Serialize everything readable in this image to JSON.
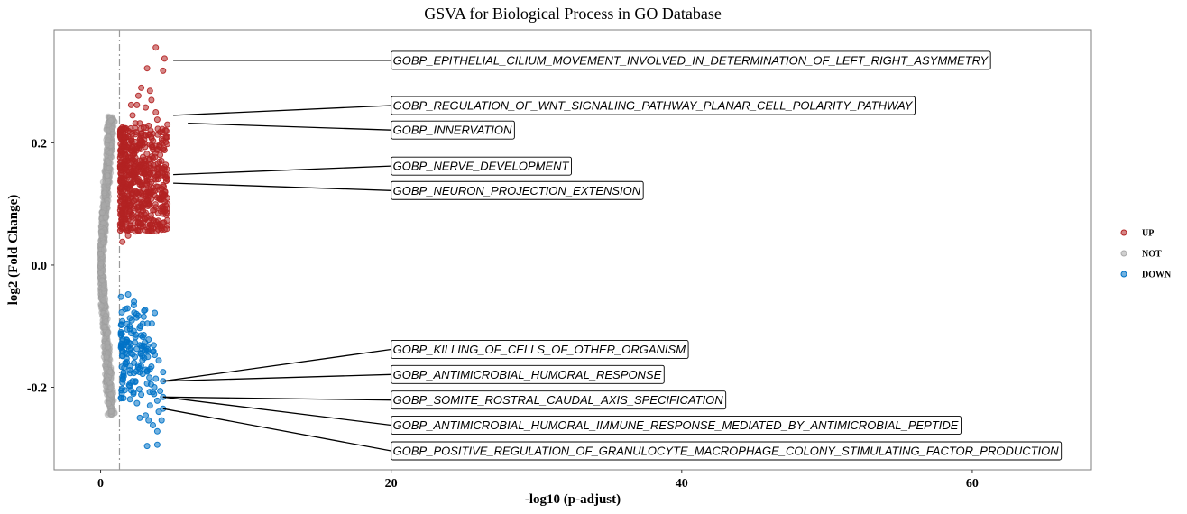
{
  "chart_data": {
    "type": "scatter",
    "title": "GSVA for Biological Process in GO Database",
    "xlabel": "-log10 (p-adjust)",
    "ylabel": "log2 (Fold Change)",
    "xlim": [
      -3.2,
      68.2
    ],
    "ylim": [
      -0.335,
      0.385
    ],
    "xticks": [
      0,
      20,
      40,
      60
    ],
    "yticks": [
      -0.2,
      0.0,
      0.2
    ],
    "xtick_labels": [
      "0",
      "20",
      "40",
      "60"
    ],
    "ytick_labels": [
      "-0.2",
      "0.0",
      "0.2"
    ],
    "threshold_x": 1.3,
    "grid": false,
    "legend_position": "right",
    "series": [
      {
        "name": "UP",
        "color": "#B22222"
      },
      {
        "name": "NOT",
        "color": "#A9A9A9"
      },
      {
        "name": "DOWN",
        "color": "#0072C6"
      }
    ],
    "highlighted_points": [
      {
        "label": "GOBP_EPITHELIAL_CILIUM_MOVEMENT_INVOLVED_IN_DETERMINATION_OF_LEFT_RIGHT_ASYMMETRY",
        "x": 5.0,
        "y": 0.335,
        "group": "UP",
        "label_y": 0.335
      },
      {
        "label": "GOBP_REGULATION_OF_WNT_SIGNALING_PATHWAY_PLANAR_CELL_POLARITY_PATHWAY",
        "x": 5.0,
        "y": 0.245,
        "group": "UP",
        "label_y": 0.261
      },
      {
        "label": "GOBP_INNERVATION",
        "x": 6.0,
        "y": 0.232,
        "group": "UP",
        "label_y": 0.221
      },
      {
        "label": "GOBP_NERVE_DEVELOPMENT",
        "x": 5.0,
        "y": 0.148,
        "group": "UP",
        "label_y": 0.162
      },
      {
        "label": "GOBP_NEURON_PROJECTION_EXTENSION",
        "x": 5.0,
        "y": 0.134,
        "group": "UP",
        "label_y": 0.122
      },
      {
        "label": "GOBP_KILLING_OF_CELLS_OF_OTHER_ORGANISM",
        "x": 4.3,
        "y": -0.19,
        "group": "DOWN",
        "label_y": -0.138
      },
      {
        "label": "GOBP_ANTIMICROBIAL_HUMORAL_RESPONSE",
        "x": 4.3,
        "y": -0.19,
        "group": "DOWN",
        "label_y": -0.179
      },
      {
        "label": "GOBP_SOMITE_ROSTRAL_CAUDAL_AXIS_SPECIFICATION",
        "x": 4.3,
        "y": -0.216,
        "group": "DOWN",
        "label_y": -0.221
      },
      {
        "label": "GOBP_ANTIMICROBIAL_HUMORAL_IMMUNE_RESPONSE_MEDIATED_BY_ANTIMICROBIAL_PEPTIDE",
        "x": 4.3,
        "y": -0.216,
        "group": "DOWN",
        "label_y": -0.262
      },
      {
        "label": "GOBP_POSITIVE_REGULATION_OF_GRANULOCYTE_MACROPHAGE_COLONY_STIMULATING_FACTOR_PRODUCTION",
        "x": 4.3,
        "y": -0.235,
        "group": "DOWN",
        "label_y": -0.304
      }
    ],
    "points": {
      "UP": [
        [
          3.8,
          0.356
        ],
        [
          4.4,
          0.338
        ],
        [
          3.2,
          0.322
        ],
        [
          4.3,
          0.318
        ],
        [
          2.8,
          0.29
        ],
        [
          3.4,
          0.285
        ],
        [
          2.6,
          0.277
        ],
        [
          3.5,
          0.27
        ],
        [
          2.5,
          0.262
        ],
        [
          3.8,
          0.25
        ],
        [
          2.2,
          0.245
        ],
        [
          4.6,
          0.23
        ],
        [
          3.9,
          0.238
        ],
        [
          3.3,
          0.228
        ],
        [
          4.5,
          0.21
        ],
        [
          4.2,
          0.2
        ],
        [
          1.8,
          0.188
        ],
        [
          2.4,
          0.214
        ],
        [
          3.0,
          0.205
        ],
        [
          2.1,
          0.176
        ],
        [
          4.1,
          0.18
        ],
        [
          3.6,
          0.175
        ],
        [
          4.4,
          0.16
        ],
        [
          1.6,
          0.165
        ],
        [
          2.2,
          0.15
        ],
        [
          3.3,
          0.147
        ],
        [
          4.6,
          0.14
        ],
        [
          2.7,
          0.132
        ],
        [
          4.2,
          0.125
        ],
        [
          1.8,
          0.128
        ],
        [
          3.6,
          0.12
        ],
        [
          3.1,
          0.112
        ],
        [
          2.3,
          0.106
        ],
        [
          1.6,
          0.1
        ],
        [
          2.9,
          0.094
        ],
        [
          2.0,
          0.086
        ],
        [
          3.7,
          0.09
        ],
        [
          1.7,
          0.075
        ],
        [
          2.6,
          0.07
        ],
        [
          1.5,
          0.062
        ],
        [
          2.4,
          0.055
        ],
        [
          1.9,
          0.048
        ],
        [
          1.5,
          0.038
        ],
        [
          2.7,
          0.232
        ],
        [
          3.5,
          0.196
        ],
        [
          2.9,
          0.168
        ],
        [
          3.8,
          0.14
        ],
        [
          2.5,
          0.118
        ],
        [
          1.9,
          0.21
        ],
        [
          1.4,
          0.14
        ],
        [
          1.5,
          0.225
        ],
        [
          2.0,
          0.122
        ],
        [
          3.2,
          0.078
        ],
        [
          1.8,
          0.058
        ],
        [
          4.0,
          0.16
        ],
        [
          1.6,
          0.198
        ],
        [
          2.3,
          0.183
        ],
        [
          3.0,
          0.152
        ],
        [
          4.4,
          0.188
        ],
        [
          2.8,
          0.1
        ],
        [
          3.4,
          0.066
        ],
        [
          1.7,
          0.11
        ],
        [
          2.1,
          0.262
        ],
        [
          3.1,
          0.258
        ],
        [
          2.4,
          0.232
        ],
        [
          1.5,
          0.085
        ],
        [
          2.6,
          0.138
        ],
        [
          3.9,
          0.11
        ],
        [
          4.3,
          0.148
        ],
        [
          1.4,
          0.17
        ]
      ],
      "DOWN": [
        [
          1.9,
          -0.048
        ],
        [
          1.4,
          -0.052
        ],
        [
          2.3,
          -0.06
        ],
        [
          1.7,
          -0.072
        ],
        [
          2.6,
          -0.083
        ],
        [
          1.5,
          -0.092
        ],
        [
          2.0,
          -0.1
        ],
        [
          2.9,
          -0.096
        ],
        [
          1.4,
          -0.11
        ],
        [
          2.4,
          -0.118
        ],
        [
          3.3,
          -0.122
        ],
        [
          1.8,
          -0.126
        ],
        [
          2.7,
          -0.131
        ],
        [
          1.5,
          -0.14
        ],
        [
          3.6,
          -0.142
        ],
        [
          2.2,
          -0.146
        ],
        [
          3.0,
          -0.152
        ],
        [
          4.0,
          -0.156
        ],
        [
          1.7,
          -0.16
        ],
        [
          2.6,
          -0.164
        ],
        [
          3.5,
          -0.166
        ],
        [
          2.0,
          -0.172
        ],
        [
          4.3,
          -0.175
        ],
        [
          2.9,
          -0.178
        ],
        [
          1.6,
          -0.182
        ],
        [
          3.8,
          -0.186
        ],
        [
          2.4,
          -0.19
        ],
        [
          4.3,
          -0.19
        ],
        [
          3.2,
          -0.194
        ],
        [
          2.1,
          -0.205
        ],
        [
          3.6,
          -0.208
        ],
        [
          2.8,
          -0.212
        ],
        [
          4.3,
          -0.216
        ],
        [
          3.9,
          -0.222
        ],
        [
          2.5,
          -0.226
        ],
        [
          3.4,
          -0.23
        ],
        [
          4.3,
          -0.235
        ],
        [
          4.0,
          -0.24
        ],
        [
          3.1,
          -0.246
        ],
        [
          2.7,
          -0.25
        ],
        [
          4.2,
          -0.254
        ],
        [
          3.6,
          -0.262
        ],
        [
          3.3,
          -0.254
        ],
        [
          3.9,
          -0.272
        ],
        [
          3.2,
          -0.296
        ],
        [
          3.9,
          -0.294
        ],
        [
          1.9,
          -0.133
        ],
        [
          3.1,
          -0.14
        ],
        [
          2.3,
          -0.16
        ],
        [
          1.5,
          -0.124
        ],
        [
          2.8,
          -0.115
        ],
        [
          3.7,
          -0.2
        ],
        [
          2.0,
          -0.198
        ],
        [
          4.1,
          -0.206
        ],
        [
          3.4,
          -0.17
        ]
      ]
    }
  },
  "legend": {
    "items": [
      {
        "label": "UP",
        "color": "#B22222"
      },
      {
        "label": "NOT",
        "color": "#A9A9A9"
      },
      {
        "label": "DOWN",
        "color": "#0072C6"
      }
    ]
  }
}
